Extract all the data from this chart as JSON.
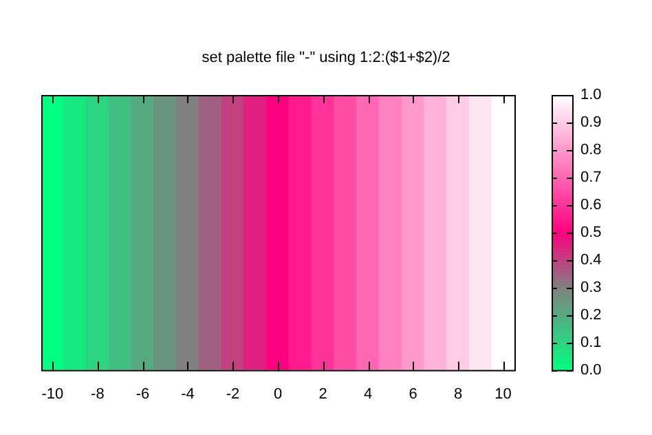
{
  "chart_data": {
    "type": "heatmap",
    "title": "set palette file \"-\" using 1:2:($1+$2)/2",
    "categories": [
      "-10",
      null,
      "-8",
      null,
      "-6",
      null,
      "-4",
      null,
      "-2",
      null,
      "0",
      null,
      "2",
      null,
      "4",
      null,
      "6",
      null,
      "8",
      null,
      "10"
    ],
    "y_categories": [
      null
    ],
    "cells": [
      [
        0.0,
        0.05,
        0.1,
        0.15,
        0.2,
        0.25,
        0.3,
        0.35,
        0.4,
        0.45,
        0.5,
        0.55,
        0.6,
        0.65,
        0.7,
        0.75,
        0.8,
        0.85,
        0.9,
        0.95,
        1.0
      ]
    ],
    "clim": [
      0,
      1
    ],
    "cticks": [
      {
        "value": 0,
        "label": "0.0"
      },
      {
        "value": 0.1,
        "label": "0.1"
      },
      {
        "value": 0.2,
        "label": "0.2"
      },
      {
        "value": 0.3,
        "label": "0.3"
      },
      {
        "value": 0.4,
        "label": "0.4"
      },
      {
        "value": 0.5,
        "label": "0.5"
      },
      {
        "value": 0.6,
        "label": "0.6"
      },
      {
        "value": 0.7,
        "label": "0.7"
      },
      {
        "value": 0.8,
        "label": "0.8"
      },
      {
        "value": 0.9,
        "label": "0.9"
      },
      {
        "value": 1,
        "label": "1.0"
      }
    ],
    "tick_labels": "x"
  }
}
